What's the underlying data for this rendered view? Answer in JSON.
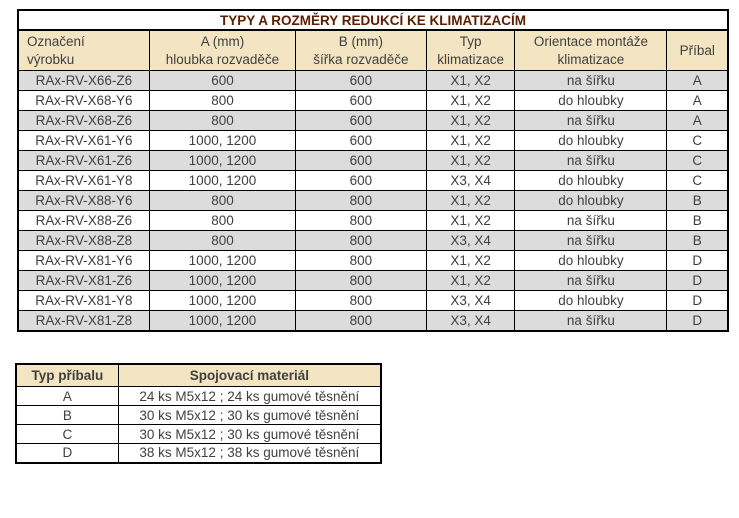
{
  "colors": {
    "title_bg": "#F49B05",
    "title_text": "#5B1D00",
    "header_bg": "#F3E5C2",
    "row_alt_bg": "#DCDCDC",
    "row_bg": "#FFFFFF",
    "border": "#000000",
    "text": "#3F3F3F"
  },
  "main_table": {
    "title": "TYPY A ROZMĚRY REDUKCÍ KE KLIMATIZACÍM",
    "headers": [
      "Označení\nvýrobku",
      "A (mm)\nhloubka rozvaděče",
      "B (mm)\nšířka rozvaděče",
      "Typ\nklimatizace",
      "Orientace montáže\nklimatizace",
      "Příbal"
    ],
    "rows": [
      [
        "RAx-RV-X66-Z6",
        "600",
        "600",
        "X1, X2",
        "na šířku",
        "A"
      ],
      [
        "RAx-RV-X68-Y6",
        "800",
        "600",
        "X1, X2",
        "do hloubky",
        "A"
      ],
      [
        "RAx-RV-X68-Z6",
        "800",
        "600",
        "X1, X2",
        "na šířku",
        "A"
      ],
      [
        "RAx-RV-X61-Y6",
        "1000, 1200",
        "600",
        "X1, X2",
        "do hloubky",
        "C"
      ],
      [
        "RAx-RV-X61-Z6",
        "1000, 1200",
        "600",
        "X1, X2",
        "na šířku",
        "C"
      ],
      [
        "RAx-RV-X61-Y8",
        "1000, 1200",
        "600",
        "X3, X4",
        "do hloubky",
        "C"
      ],
      [
        "RAx-RV-X88-Y6",
        "800",
        "800",
        "X1, X2",
        "do hloubky",
        "B"
      ],
      [
        "RAx-RV-X88-Z6",
        "800",
        "800",
        "X1, X2",
        "na šířku",
        "B"
      ],
      [
        "RAx-RV-X88-Z8",
        "800",
        "800",
        "X3, X4",
        "na šířku",
        "B"
      ],
      [
        "RAx-RV-X81-Y6",
        "1000, 1200",
        "800",
        "X1, X2",
        "do hloubky",
        "D"
      ],
      [
        "RAx-RV-X81-Z6",
        "1000, 1200",
        "800",
        "X1, X2",
        "na šířku",
        "D"
      ],
      [
        "RAx-RV-X81-Y8",
        "1000, 1200",
        "800",
        "X3, X4",
        "do hloubky",
        "D"
      ],
      [
        "RAx-RV-X81-Z8",
        "1000, 1200",
        "800",
        "X3, X4",
        "na šířku",
        "D"
      ]
    ]
  },
  "accessory_table": {
    "headers": [
      "Typ příbalu",
      "Spojovací materiál"
    ],
    "rows": [
      [
        "A",
        "24 ks M5x12 ; 24 ks gumové těsnění"
      ],
      [
        "B",
        "30 ks M5x12 ; 30 ks gumové těsnění"
      ],
      [
        "C",
        "30 ks M5x12 ; 30 ks gumové těsnění"
      ],
      [
        "D",
        "38 ks M5x12 ; 38 ks gumové těsnění"
      ]
    ]
  }
}
